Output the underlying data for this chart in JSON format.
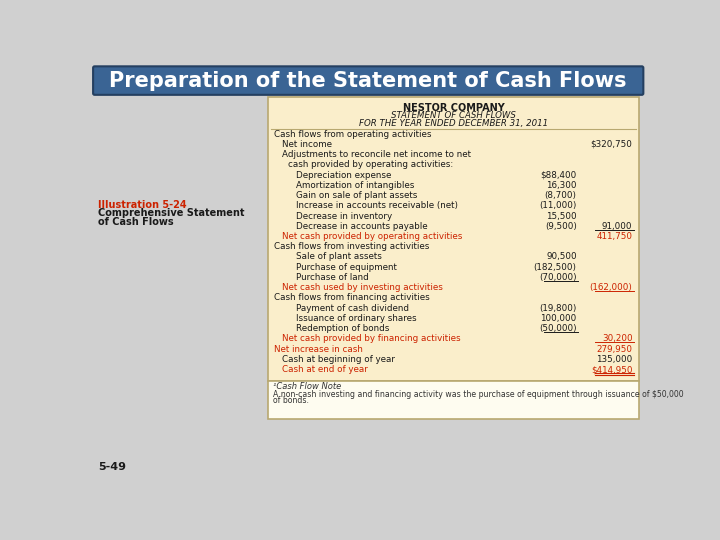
{
  "title_bar_text": "Preparation of the Statement of Cash Flows",
  "title_bar_color": "#3a6494",
  "title_bar_text_color": "#ffffff",
  "outer_bg": "#d0d0d0",
  "table_bg": "#faeecb",
  "note_bg": "#fefcf0",
  "border_color": "#b8a870",
  "company": "NESTOR COMPANY",
  "statement": "STATEMENT OF CASH FLOWS",
  "period": "FOR THE YEAR ENDED DECEMBER 31, 2011",
  "red_color": "#cc2200",
  "black_color": "#1a1a1a",
  "note_color": "#333333",
  "illustration_line1": "Illustration 5-24",
  "illustration_line2": "Comprehensive Statement",
  "illustration_line3": "of Cash Flows",
  "page_num": "5-49",
  "rows": [
    {
      "text": "Cash flows from operating activities",
      "indent": 0,
      "col1": "",
      "col2": "",
      "red": false,
      "ul_col1": false,
      "ul_col2": false
    },
    {
      "text": "Net income",
      "indent": 1,
      "col1": "",
      "col2": "$320,750",
      "red": false,
      "ul_col1": false,
      "ul_col2": false
    },
    {
      "text": "Adjustments to reconcile net income to net",
      "indent": 1,
      "col1": "",
      "col2": "",
      "red": false,
      "ul_col1": false,
      "ul_col2": false
    },
    {
      "text": "cash provided by operating activities:",
      "indent": 2,
      "col1": "",
      "col2": "",
      "red": false,
      "ul_col1": false,
      "ul_col2": false
    },
    {
      "text": "Depreciation expense",
      "indent": 3,
      "col1": "$88,400",
      "col2": "",
      "red": false,
      "ul_col1": false,
      "ul_col2": false
    },
    {
      "text": "Amortization of intangibles",
      "indent": 3,
      "col1": "16,300",
      "col2": "",
      "red": false,
      "ul_col1": false,
      "ul_col2": false
    },
    {
      "text": "Gain on sale of plant assets",
      "indent": 3,
      "col1": "(8,700)",
      "col2": "",
      "red": false,
      "ul_col1": false,
      "ul_col2": false
    },
    {
      "text": "Increase in accounts receivable (net)",
      "indent": 3,
      "col1": "(11,000)",
      "col2": "",
      "red": false,
      "ul_col1": false,
      "ul_col2": false
    },
    {
      "text": "Decrease in inventory",
      "indent": 3,
      "col1": "15,500",
      "col2": "",
      "red": false,
      "ul_col1": false,
      "ul_col2": false
    },
    {
      "text": "Decrease in accounts payable",
      "indent": 3,
      "col1": "(9,500)",
      "col2": "91,000",
      "red": false,
      "ul_col1": false,
      "ul_col2": true
    },
    {
      "text": "Net cash provided by operating activities",
      "indent": 1,
      "col1": "",
      "col2": "411,750",
      "red": true,
      "ul_col1": false,
      "ul_col2": false
    },
    {
      "text": "Cash flows from investing activities",
      "indent": 0,
      "col1": "",
      "col2": "",
      "red": false,
      "ul_col1": false,
      "ul_col2": false
    },
    {
      "text": "Sale of plant assets",
      "indent": 3,
      "col1": "90,500",
      "col2": "",
      "red": false,
      "ul_col1": false,
      "ul_col2": false
    },
    {
      "text": "Purchase of equipment",
      "indent": 3,
      "col1": "(182,500)",
      "col2": "",
      "red": false,
      "ul_col1": false,
      "ul_col2": false
    },
    {
      "text": "Purchase of land",
      "indent": 3,
      "col1": "(70,000)",
      "col2": "",
      "red": false,
      "ul_col1": true,
      "ul_col2": false
    },
    {
      "text": "Net cash used by investing activities",
      "indent": 1,
      "col1": "",
      "col2": "(162,000)",
      "red": true,
      "ul_col1": false,
      "ul_col2": true
    },
    {
      "text": "Cash flows from financing activities",
      "indent": 0,
      "col1": "",
      "col2": "",
      "red": false,
      "ul_col1": false,
      "ul_col2": false
    },
    {
      "text": "Payment of cash dividend",
      "indent": 3,
      "col1": "(19,800)",
      "col2": "",
      "red": false,
      "ul_col1": false,
      "ul_col2": false
    },
    {
      "text": "Issuance of ordinary shares",
      "indent": 3,
      "col1": "100,000",
      "col2": "",
      "red": false,
      "ul_col1": false,
      "ul_col2": false
    },
    {
      "text": "Redemption of bonds",
      "indent": 3,
      "col1": "(50,000)",
      "col2": "",
      "red": false,
      "ul_col1": true,
      "ul_col2": false
    },
    {
      "text": "Net cash provided by financing activities",
      "indent": 1,
      "col1": "",
      "col2": "30,200",
      "red": true,
      "ul_col1": false,
      "ul_col2": true
    },
    {
      "text": "Net increase in cash",
      "indent": 0,
      "col1": "",
      "col2": "279,950",
      "red": true,
      "ul_col1": false,
      "ul_col2": false
    },
    {
      "text": "Cash at beginning of year",
      "indent": 1,
      "col1": "",
      "col2": "135,000",
      "red": false,
      "ul_col1": false,
      "ul_col2": false
    },
    {
      "text": "Cash at end of year",
      "indent": 1,
      "col1": "",
      "col2": "$414,950",
      "red": true,
      "ul_col1": false,
      "ul_col2": true,
      "double_ul": true
    }
  ],
  "note_title": "¹Cash Flow Note",
  "note_body1": "A non-cash investing and financing activity was the purchase of equipment through issuance of $50,000",
  "note_body2": "of bonds."
}
